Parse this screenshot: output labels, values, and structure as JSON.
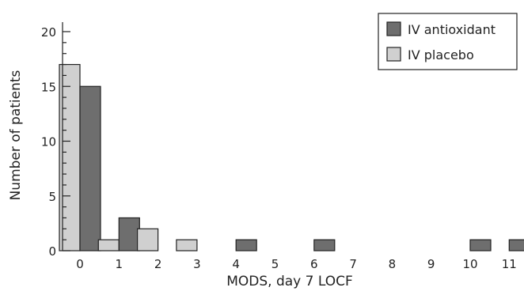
{
  "chart_data": {
    "type": "bar",
    "title": "",
    "xlabel": "MODS, day 7 LOCF",
    "ylabel": "Number of patients",
    "categories": [
      "0",
      "1",
      "2",
      "3",
      "4",
      "5",
      "6",
      "7",
      "8",
      "9",
      "10",
      "11"
    ],
    "yticks": [
      "0",
      "5",
      "10",
      "15",
      "20"
    ],
    "ylim": [
      0,
      20
    ],
    "grid": false,
    "legend_position": "top-right",
    "series": [
      {
        "name": "IV antioxidant",
        "color": "#6e6e6e",
        "values": [
          15,
          3,
          0,
          0,
          1,
          0,
          1,
          0,
          0,
          0,
          1,
          1
        ]
      },
      {
        "name": "IV placebo",
        "color": "#d0d0d0",
        "values": [
          17,
          1,
          2,
          1,
          0,
          0,
          0,
          0,
          0,
          0,
          0,
          0
        ]
      }
    ]
  }
}
